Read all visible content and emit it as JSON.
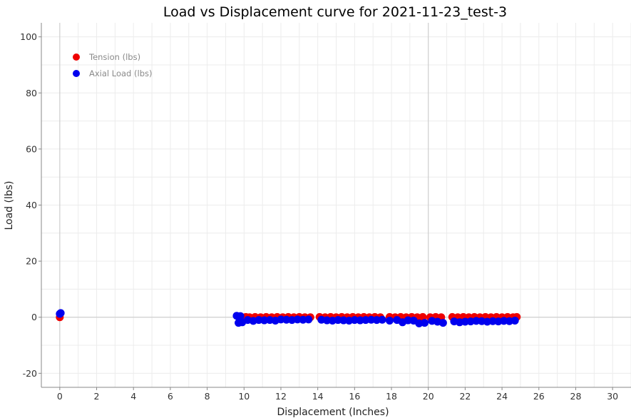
{
  "chart_data": {
    "type": "scatter",
    "title": "Load vs Displacement curve for 2021-11-23_test-3",
    "xlabel": "Displacement (Inches)",
    "ylabel": "Load (lbs)",
    "xlim": [
      -1,
      31
    ],
    "ylim": [
      -25,
      105
    ],
    "xticks": [
      0,
      2,
      4,
      6,
      8,
      10,
      12,
      14,
      16,
      18,
      20,
      22,
      24,
      26,
      28,
      30
    ],
    "yticks": [
      -20,
      0,
      20,
      40,
      60,
      80,
      100
    ],
    "grid": true,
    "legend_position": "top-left",
    "series": [
      {
        "name": "Tension (lbs)",
        "color": "#ee0000",
        "x": [
          0.0,
          9.7,
          9.8,
          9.9,
          10.1,
          10.3,
          10.6,
          10.9,
          11.2,
          11.5,
          11.8,
          12.1,
          12.4,
          12.7,
          13.0,
          13.3,
          13.6,
          14.1,
          14.4,
          14.7,
          15.0,
          15.3,
          15.6,
          15.9,
          16.2,
          16.5,
          16.8,
          17.1,
          17.4,
          17.9,
          18.2,
          18.5,
          18.8,
          19.1,
          19.4,
          19.7,
          20.1,
          20.4,
          20.7,
          21.3,
          21.6,
          21.9,
          22.2,
          22.5,
          22.8,
          23.1,
          23.4,
          23.7,
          24.0,
          24.3,
          24.6,
          24.8
        ],
        "y": [
          0.0,
          0.2,
          0.1,
          0.0,
          0.1,
          0.0,
          0.1,
          0.0,
          0.1,
          0.0,
          0.1,
          0.0,
          0.1,
          0.0,
          0.1,
          0.0,
          0.0,
          0.1,
          0.0,
          0.1,
          0.0,
          0.1,
          0.0,
          0.1,
          0.0,
          0.1,
          0.0,
          0.1,
          0.0,
          0.1,
          0.0,
          0.1,
          0.0,
          0.1,
          0.0,
          0.1,
          0.0,
          0.1,
          0.0,
          0.1,
          0.0,
          0.1,
          0.0,
          0.1,
          0.0,
          0.1,
          0.0,
          0.1,
          0.0,
          0.1,
          0.0,
          0.1
        ]
      },
      {
        "name": "Axial Load (lbs)",
        "color": "#0000ee",
        "x": [
          0.0,
          0.05,
          9.6,
          9.7,
          9.8,
          9.9,
          10.2,
          10.5,
          10.8,
          11.1,
          11.4,
          11.7,
          12.0,
          12.3,
          12.6,
          12.9,
          13.2,
          13.5,
          14.2,
          14.5,
          14.8,
          15.1,
          15.4,
          15.7,
          16.0,
          16.3,
          16.6,
          16.9,
          17.2,
          17.5,
          17.9,
          18.3,
          18.6,
          18.9,
          19.2,
          19.5,
          19.8,
          20.2,
          20.5,
          20.8,
          21.4,
          21.7,
          22.0,
          22.3,
          22.6,
          22.9,
          23.2,
          23.5,
          23.8,
          24.1,
          24.4,
          24.7
        ],
        "y": [
          1.2,
          1.5,
          0.5,
          -2.0,
          0.4,
          -1.8,
          -1.0,
          -1.3,
          -1.0,
          -1.1,
          -1.0,
          -1.2,
          -0.8,
          -0.9,
          -1.0,
          -0.8,
          -0.9,
          -0.8,
          -0.9,
          -1.1,
          -1.2,
          -1.0,
          -1.1,
          -1.2,
          -1.0,
          -1.1,
          -1.0,
          -0.9,
          -1.0,
          -0.9,
          -1.2,
          -1.0,
          -1.8,
          -1.1,
          -1.2,
          -2.2,
          -2.0,
          -1.3,
          -1.6,
          -2.0,
          -1.5,
          -1.8,
          -1.6,
          -1.5,
          -1.3,
          -1.4,
          -1.6,
          -1.4,
          -1.5,
          -1.3,
          -1.4,
          -1.2
        ]
      }
    ]
  }
}
